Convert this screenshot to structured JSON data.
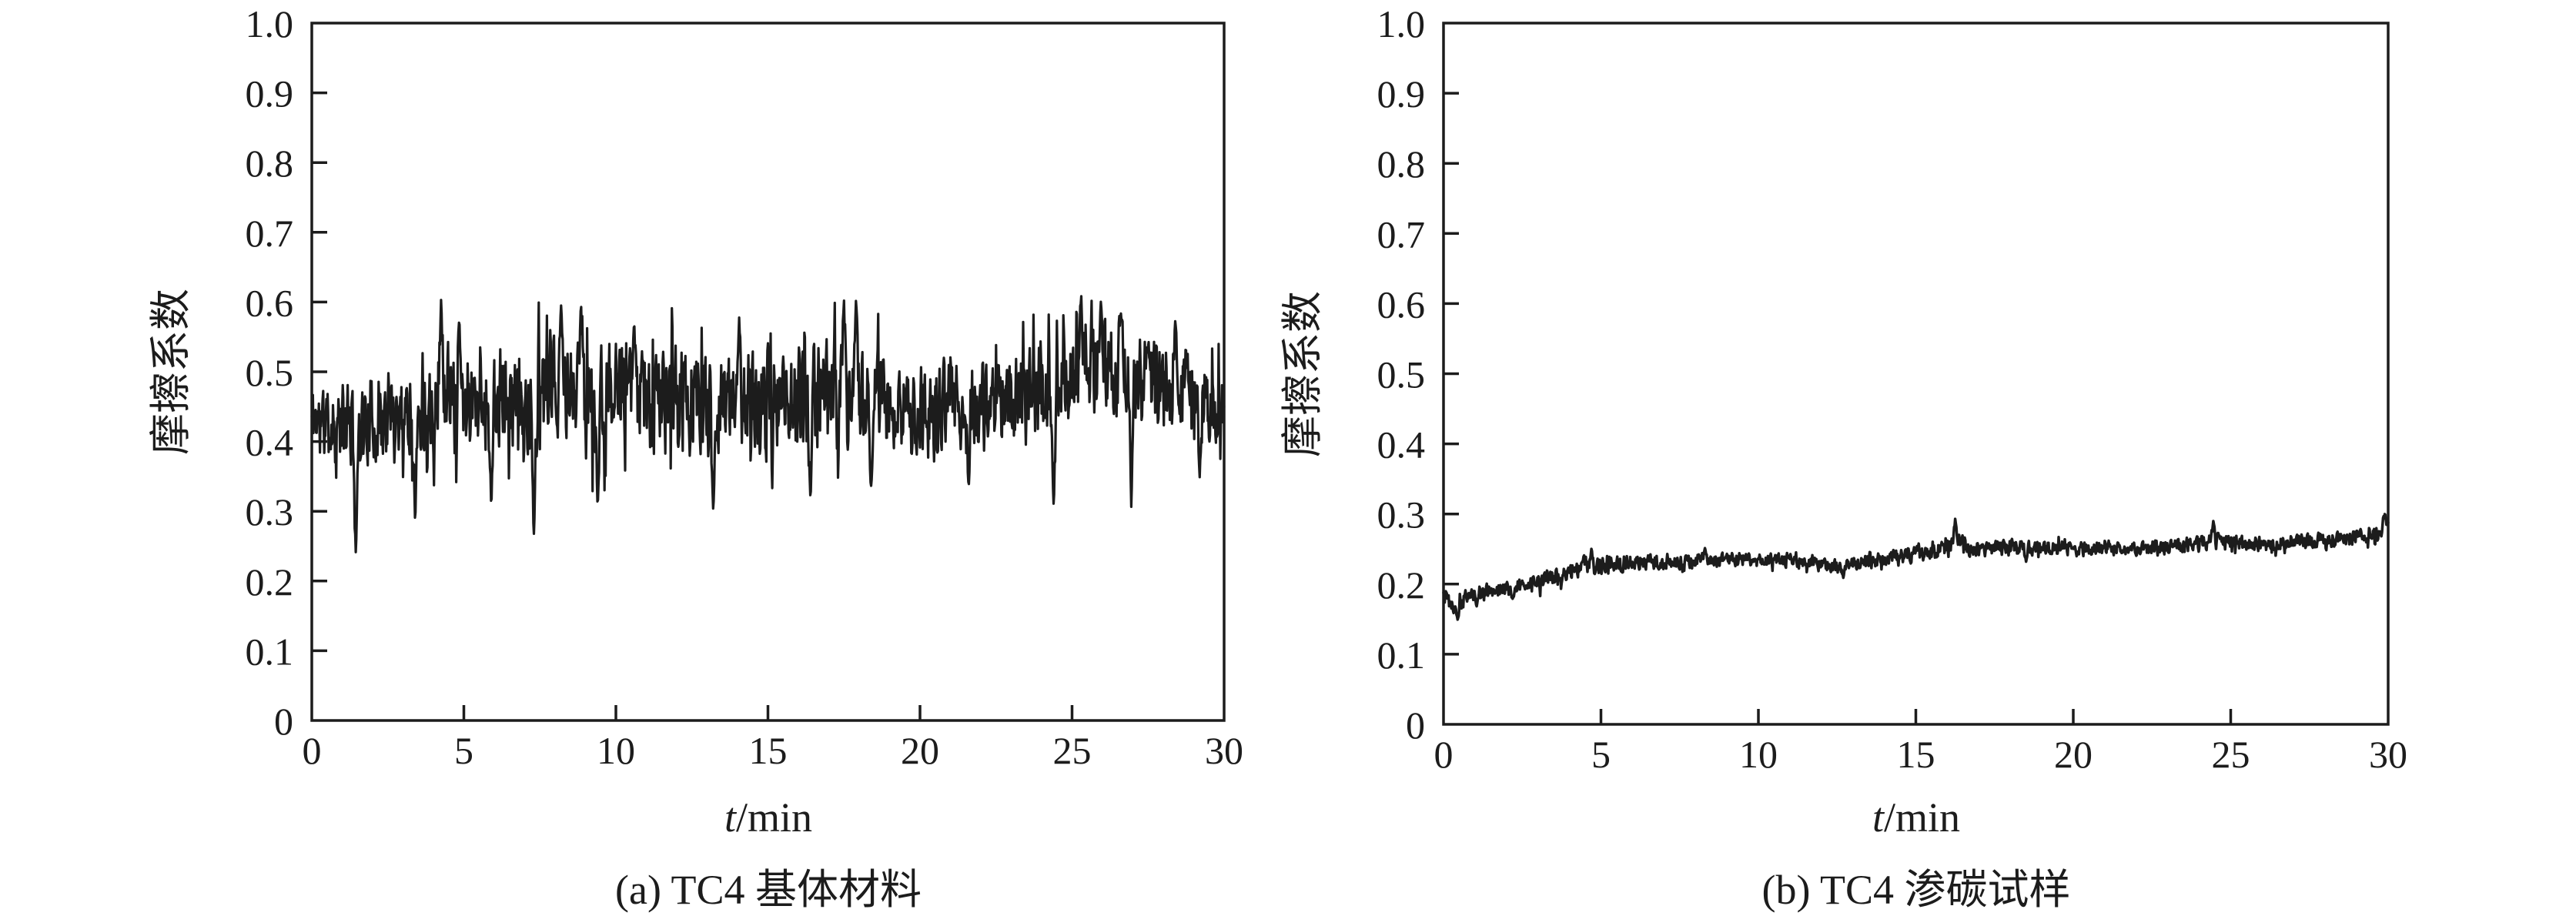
{
  "figure": {
    "background": "#ffffff",
    "ink_color": "#1c1c1c",
    "description": "Two friction-coefficient vs time line charts side by side"
  },
  "chart_data": [
    {
      "id": "a",
      "type": "line",
      "title": "(a) TC4 基体材料",
      "xlabel": "t/min",
      "xlabel_symbol": "t",
      "xlabel_unit": "/min",
      "ylabel": "摩擦系数",
      "xlim": [
        0,
        30
      ],
      "ylim": [
        0,
        1.0
      ],
      "xticks": [
        0,
        5,
        10,
        15,
        20,
        25,
        30
      ],
      "ytick_step": 0.1,
      "ytick_labels": [
        "0",
        "0.1",
        "0.2",
        "0.3",
        "0.4",
        "0.5",
        "0.6",
        "0.7",
        "0.8",
        "0.9",
        "1.0"
      ],
      "grid": false,
      "legend": null,
      "line_color": "#1c1c1c",
      "series": [
        {
          "name": "TC4 substrate friction coefficient",
          "summary": "Very noisy steady trace fluctuating about 0.45 (typical band 0.38-0.55), sharp low spikes to about 0.23 near t=1.5 min and about 0.26-0.30 elsewhere, peaks to about 0.61, slightly higher band near 0.50 around t=25-27 min",
          "points_per_min": 56,
          "seed": 11,
          "noise_scale": 1.15,
          "spike_prob": 0.08,
          "spike_gain": 1.9,
          "spike_width": 0.1,
          "clamp": [
            0.228,
            0.615
          ],
          "envelope": {
            "x": [
              0,
              1,
              2,
              3,
              4,
              5,
              6,
              7,
              8,
              9,
              10,
              11,
              12,
              13,
              14,
              15,
              16,
              17,
              18,
              19,
              20,
              21,
              22,
              23,
              24,
              25,
              26,
              27,
              28,
              29,
              30
            ],
            "mean": [
              0.435,
              0.42,
              0.43,
              0.445,
              0.465,
              0.47,
              0.455,
              0.445,
              0.465,
              0.47,
              0.465,
              0.46,
              0.465,
              0.45,
              0.46,
              0.445,
              0.465,
              0.475,
              0.46,
              0.45,
              0.44,
              0.45,
              0.45,
              0.46,
              0.47,
              0.5,
              0.51,
              0.49,
              0.475,
              0.47,
              0.445
            ],
            "amplitude": [
              0.05,
              0.06,
              0.06,
              0.07,
              0.08,
              0.07,
              0.07,
              0.08,
              0.07,
              0.08,
              0.07,
              0.07,
              0.08,
              0.07,
              0.07,
              0.08,
              0.07,
              0.08,
              0.07,
              0.07,
              0.07,
              0.07,
              0.065,
              0.07,
              0.07,
              0.06,
              0.07,
              0.07,
              0.07,
              0.065,
              0.06
            ]
          },
          "spikes_low": [
            [
              1.45,
              0.235
            ],
            [
              3.4,
              0.285
            ],
            [
              5.9,
              0.305
            ],
            [
              7.3,
              0.262
            ],
            [
              9.4,
              0.3
            ],
            [
              13.2,
              0.3
            ],
            [
              16.4,
              0.31
            ],
            [
              18.4,
              0.325
            ],
            [
              21.6,
              0.33
            ],
            [
              24.4,
              0.3
            ],
            [
              26.95,
              0.3
            ],
            [
              29.2,
              0.345
            ]
          ],
          "spikes_high": [
            [
              4.25,
              0.603
            ],
            [
              4.85,
              0.578
            ],
            [
              8.2,
              0.598
            ],
            [
              8.85,
              0.603
            ],
            [
              10.6,
              0.578
            ],
            [
              14.05,
              0.582
            ],
            [
              17.5,
              0.602
            ],
            [
              17.9,
              0.612
            ],
            [
              25.3,
              0.612
            ],
            [
              25.95,
              0.603
            ],
            [
              26.6,
              0.592
            ],
            [
              28.4,
              0.578
            ]
          ]
        }
      ]
    },
    {
      "id": "b",
      "type": "line",
      "title": "(b) TC4 渗碳试样",
      "xlabel": "t/min",
      "xlabel_symbol": "t",
      "xlabel_unit": "/min",
      "ylabel": "摩擦系数",
      "xlim": [
        0,
        30
      ],
      "ylim": [
        0,
        1.0
      ],
      "xticks": [
        0,
        5,
        10,
        15,
        20,
        25,
        30
      ],
      "ytick_step": 0.1,
      "ytick_labels": [
        "0",
        "0.1",
        "0.2",
        "0.3",
        "0.4",
        "0.5",
        "0.6",
        "0.7",
        "0.8",
        "0.9",
        "1.0"
      ],
      "grid": false,
      "legend": null,
      "line_color": "#1c1c1c",
      "series": [
        {
          "name": "TC4 carburized sample friction coefficient",
          "summary": "Low-noise trace: starts near 0.18, brief dip to about 0.15, rises to about 0.23 by t=5 min, slowly climbs to about 0.25-0.27, small spike to about 0.29 near t=16 min and near t=24.4 min, ends with spike to about 0.30 at t=30 min",
          "points_per_min": 56,
          "seed": 5,
          "noise_scale": 1.0,
          "spike_prob": 0.05,
          "spike_gain": 1.8,
          "spike_width": 0.08,
          "clamp": [
            0.142,
            0.306
          ],
          "envelope": {
            "x": [
              0,
              0.35,
              0.8,
              1.5,
              2.5,
              3.5,
              4.5,
              5.5,
              7,
              9,
              11,
              12.5,
              14,
              15.5,
              16.2,
              17,
              19,
              21,
              23,
              24.4,
              26,
              28,
              29.5,
              30
            ],
            "mean": [
              0.185,
              0.165,
              0.185,
              0.19,
              0.198,
              0.21,
              0.226,
              0.23,
              0.231,
              0.236,
              0.234,
              0.225,
              0.237,
              0.247,
              0.258,
              0.25,
              0.252,
              0.25,
              0.252,
              0.262,
              0.256,
              0.262,
              0.27,
              0.285
            ],
            "amplitude": [
              0.012,
              0.015,
              0.012,
              0.013,
              0.013,
              0.015,
              0.017,
              0.014,
              0.012,
              0.013,
              0.012,
              0.012,
              0.014,
              0.015,
              0.02,
              0.012,
              0.013,
              0.012,
              0.012,
              0.015,
              0.012,
              0.013,
              0.014,
              0.016
            ]
          },
          "spikes_low": [
            [
              0.45,
              0.148
            ],
            [
              1.05,
              0.168
            ],
            [
              2.2,
              0.178
            ],
            [
              12.7,
              0.208
            ],
            [
              18.5,
              0.232
            ]
          ],
          "spikes_high": [
            [
              4.7,
              0.251
            ],
            [
              8.3,
              0.252
            ],
            [
              16.25,
              0.293
            ],
            [
              24.45,
              0.291
            ],
            [
              29.9,
              0.303
            ]
          ]
        }
      ]
    }
  ]
}
